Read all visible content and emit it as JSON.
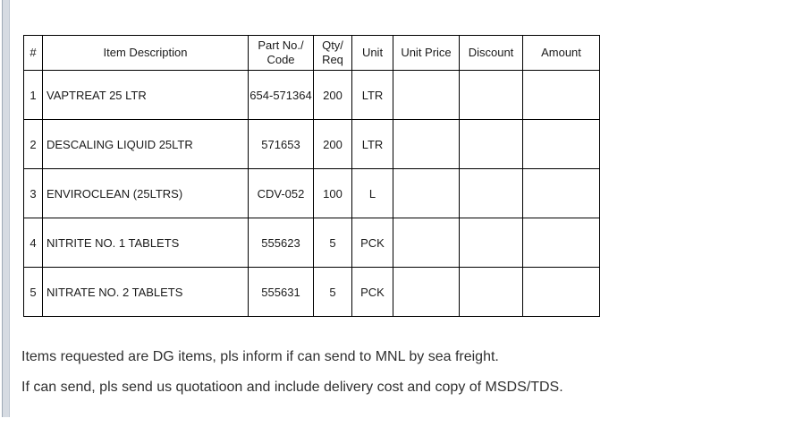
{
  "scrollbar": {
    "orientation": "vertical"
  },
  "table": {
    "columns": [
      {
        "key": "num",
        "label": "#"
      },
      {
        "key": "description",
        "label": "Item Description"
      },
      {
        "key": "part",
        "label": "Part No./\nCode"
      },
      {
        "key": "qty",
        "label": "Qty/\nReq"
      },
      {
        "key": "unit",
        "label": "Unit"
      },
      {
        "key": "unit_price",
        "label": "Unit Price"
      },
      {
        "key": "discount",
        "label": "Discount"
      },
      {
        "key": "amount",
        "label": "Amount"
      }
    ],
    "rows": [
      {
        "num": "1",
        "description": "VAPTREAT 25 LTR",
        "part": "654-571364",
        "qty": "200",
        "unit": "LTR",
        "unit_price": "",
        "discount": "",
        "amount": ""
      },
      {
        "num": "2",
        "description": "DESCALING LIQUID 25LTR",
        "part": "571653",
        "qty": "200",
        "unit": "LTR",
        "unit_price": "",
        "discount": "",
        "amount": ""
      },
      {
        "num": "3",
        "description": "ENVIROCLEAN (25LTRS)",
        "part": "CDV-052",
        "qty": "100",
        "unit": "L",
        "unit_price": "",
        "discount": "",
        "amount": ""
      },
      {
        "num": "4",
        "description": "NITRITE NO. 1 TABLETS",
        "part": "555623",
        "qty": "5",
        "unit": "PCK",
        "unit_price": "",
        "discount": "",
        "amount": ""
      },
      {
        "num": "5",
        "description": "NITRATE NO. 2 TABLETS",
        "part": "555631",
        "qty": "5",
        "unit": "PCK",
        "unit_price": "",
        "discount": "",
        "amount": ""
      }
    ]
  },
  "notes": {
    "line1": "Items requested are DG items, pls inform if can send to MNL by sea freight.",
    "line2": "If can send, pls send us quotatioon and include delivery cost and copy of MSDS/TDS."
  },
  "colors": {
    "border": "#000000",
    "scrollbar_fill": "#d6dbe2",
    "scrollbar_edge": "#9fa9b6",
    "table_text": "#1a1a1a",
    "note_text": "#303030"
  }
}
